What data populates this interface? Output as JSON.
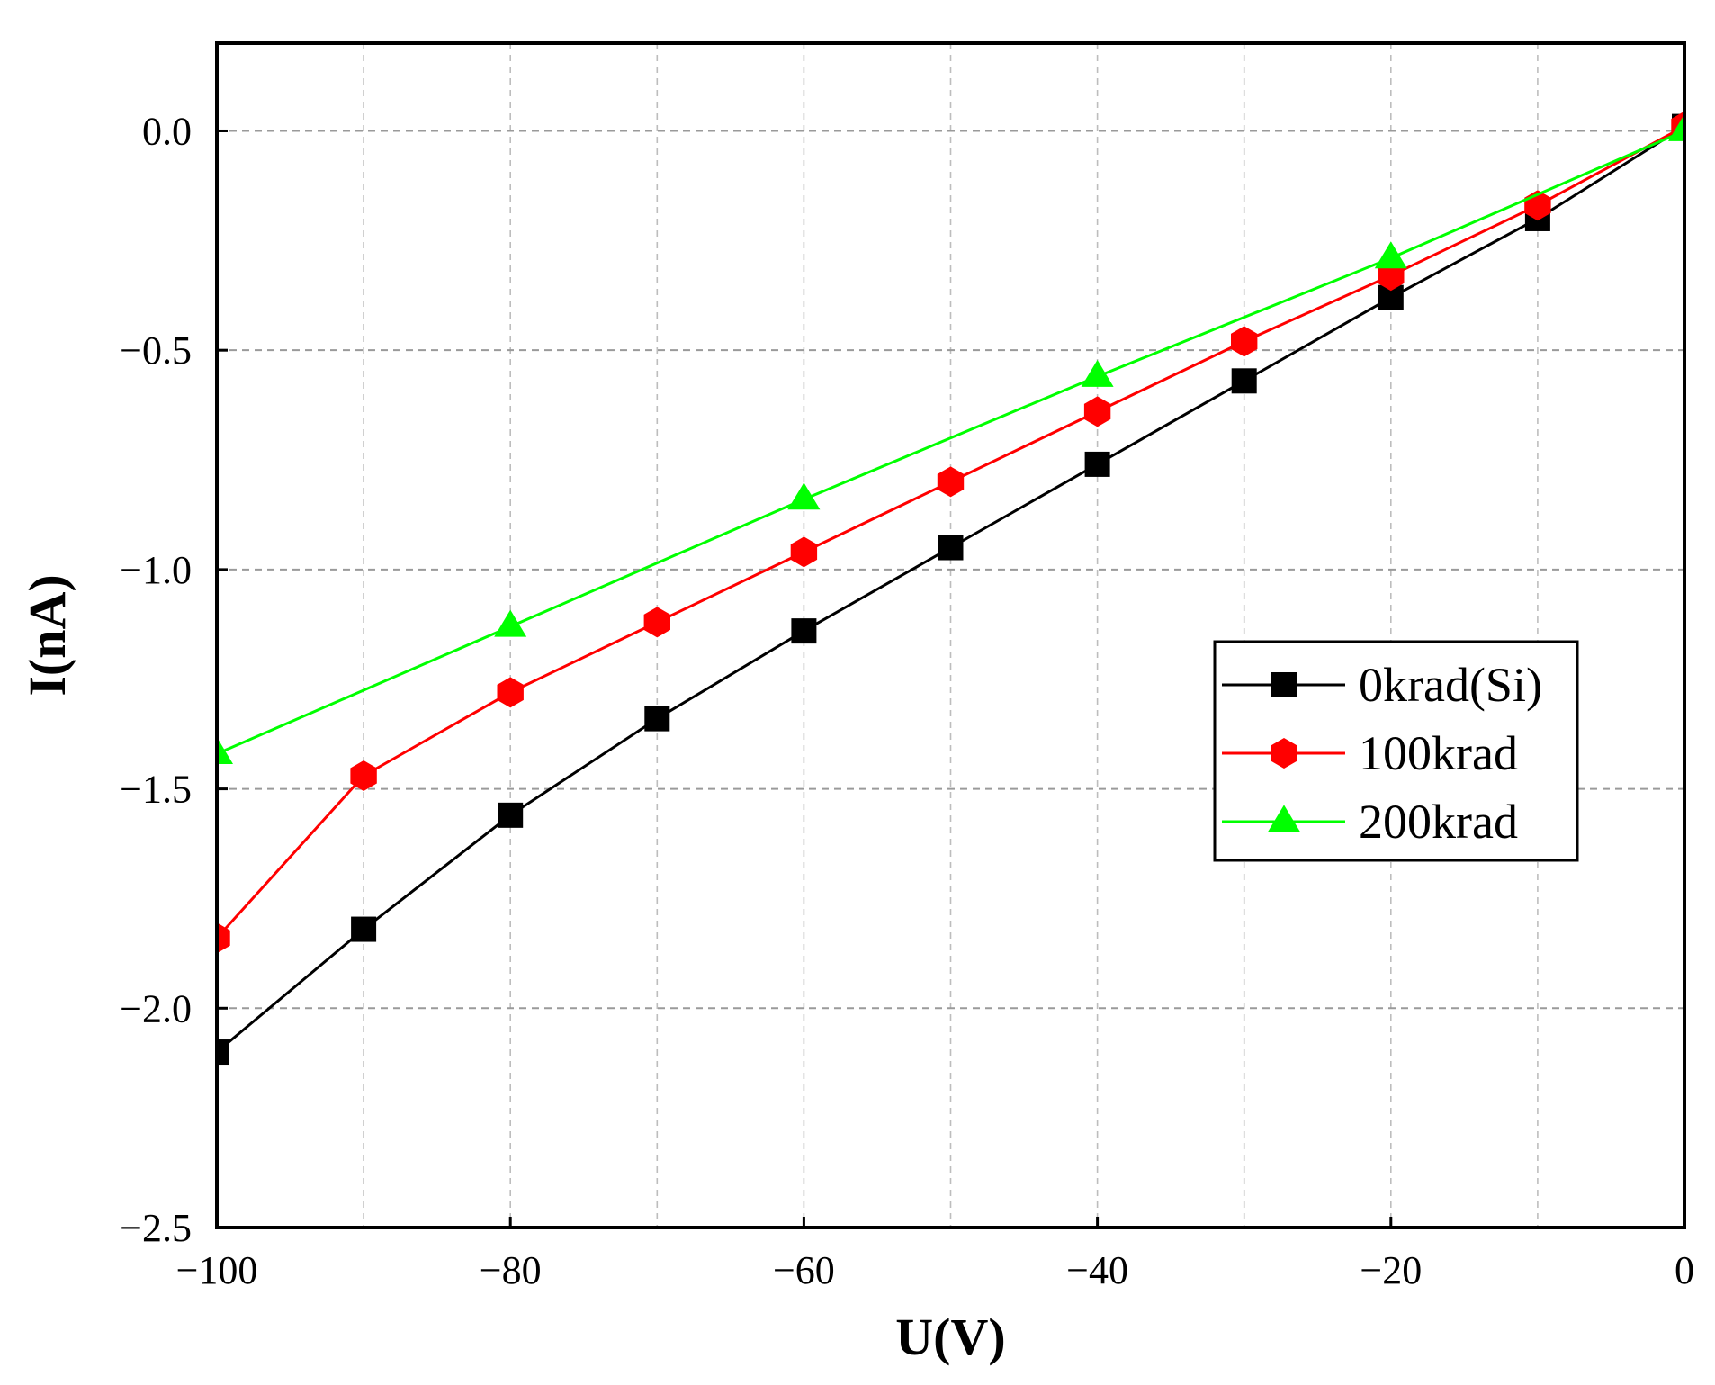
{
  "chart_data": {
    "type": "line",
    "title": "",
    "xlabel": "U(V)",
    "ylabel": "I(nA)",
    "xlim": [
      -100,
      0
    ],
    "ylim": [
      -2.5,
      0.2
    ],
    "grid": true,
    "legend_position": "middle-right",
    "x_ticks": [
      -100,
      -80,
      -60,
      -40,
      -20,
      0
    ],
    "x_tick_labels": [
      "−100",
      "−80",
      "−60",
      "−40",
      "−20",
      "0"
    ],
    "y_ticks": [
      0.0,
      -0.5,
      -1.0,
      -1.5,
      -2.0,
      -2.5
    ],
    "y_tick_labels": [
      "0.0",
      "−0.5",
      "−1.0",
      "−1.5",
      "−2.0",
      "−2.5"
    ],
    "series": [
      {
        "name": "0krad(Si)",
        "color": "#000000",
        "marker": "square",
        "x": [
          -100,
          -90,
          -80,
          -70,
          -60,
          -50,
          -40,
          -30,
          -20,
          -10,
          0
        ],
        "values": [
          -2.1,
          -1.82,
          -1.56,
          -1.34,
          -1.14,
          -0.95,
          -0.76,
          -0.57,
          -0.38,
          -0.2,
          0.01
        ]
      },
      {
        "name": "100krad",
        "color": "#ff0000",
        "marker": "hexagon",
        "x": [
          -100,
          -90,
          -80,
          -70,
          -60,
          -50,
          -40,
          -30,
          -20,
          -10,
          0
        ],
        "values": [
          -1.84,
          -1.47,
          -1.28,
          -1.12,
          -0.96,
          -0.8,
          -0.64,
          -0.48,
          -0.33,
          -0.17,
          0.01
        ]
      },
      {
        "name": "200krad",
        "color": "#00ff00",
        "marker": "triangle",
        "x": [
          -100,
          -80,
          -60,
          -40,
          -20,
          0
        ],
        "values": [
          -1.42,
          -1.13,
          -0.84,
          -0.56,
          -0.29,
          0.0
        ]
      }
    ]
  }
}
